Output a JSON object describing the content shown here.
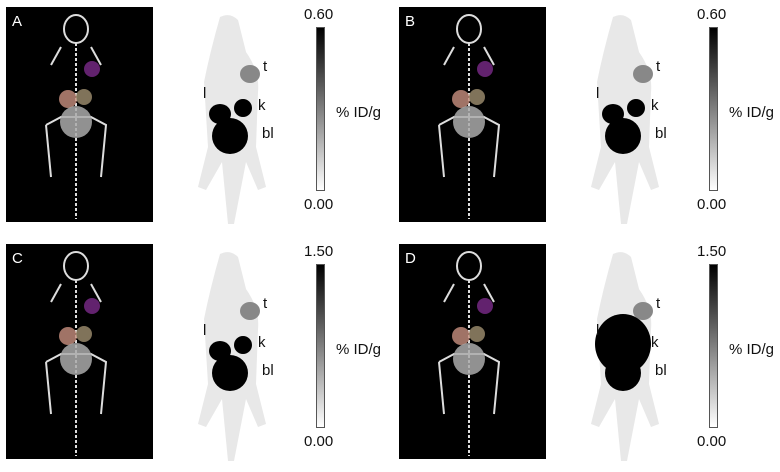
{
  "panels": [
    {
      "letter": "A",
      "scale_max": "0.60",
      "scale_min": "0.00",
      "unit": "% ID/g",
      "labels": {
        "t": "t",
        "l": "l",
        "k": "k",
        "bl": "bl"
      }
    },
    {
      "letter": "B",
      "scale_max": "0.60",
      "scale_min": "0.00",
      "unit": "% ID/g",
      "labels": {
        "t": "t",
        "l": "l",
        "k": "k",
        "bl": "bl"
      }
    },
    {
      "letter": "C",
      "scale_max": "1.50",
      "scale_min": "0.00",
      "unit": "% ID/g",
      "labels": {
        "t": "t",
        "l": "l",
        "k": "k",
        "bl": "bl"
      }
    },
    {
      "letter": "D",
      "scale_max": "1.50",
      "scale_min": "0.00",
      "unit": "% ID/g",
      "labels": {
        "t": "t",
        "l": "l",
        "k": "k",
        "bl": "bl"
      }
    }
  ]
}
